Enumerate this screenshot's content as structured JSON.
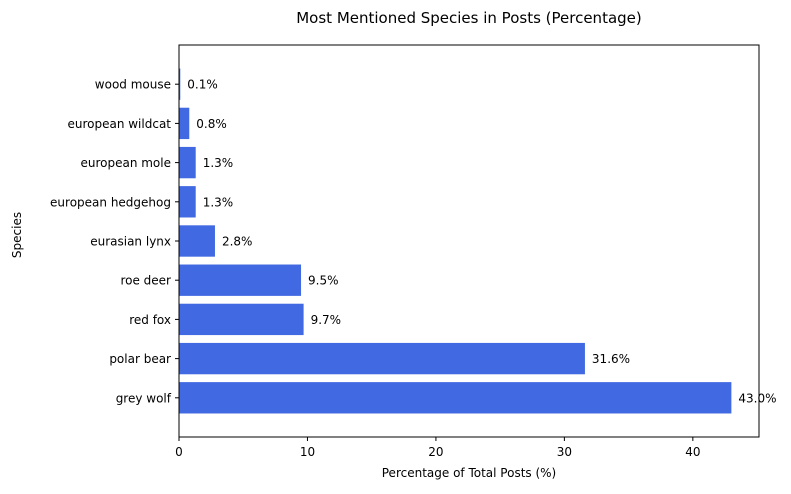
{
  "chart_data": {
    "type": "bar",
    "orientation": "horizontal",
    "title": "Most Mentioned Species in Posts (Percentage)",
    "xlabel": "Percentage of Total Posts (%)",
    "ylabel": "Species",
    "categories": [
      "grey wolf",
      "polar bear",
      "red fox",
      "roe deer",
      "eurasian lynx",
      "european hedgehog",
      "european mole",
      "european wildcat",
      "wood mouse"
    ],
    "values": [
      43.0,
      31.6,
      9.7,
      9.5,
      2.8,
      1.3,
      1.3,
      0.8,
      0.1
    ],
    "data_labels": [
      "43.0%",
      "31.6%",
      "9.7%",
      "9.5%",
      "2.8%",
      "1.3%",
      "1.3%",
      "0.8%",
      "0.1%"
    ],
    "xlim": [
      0,
      45.15
    ],
    "xticks": [
      0,
      10,
      20,
      30,
      40
    ],
    "xtick_labels": [
      "0",
      "10",
      "20",
      "30",
      "40"
    ],
    "grid": false,
    "bar_color": "#4169e1"
  }
}
